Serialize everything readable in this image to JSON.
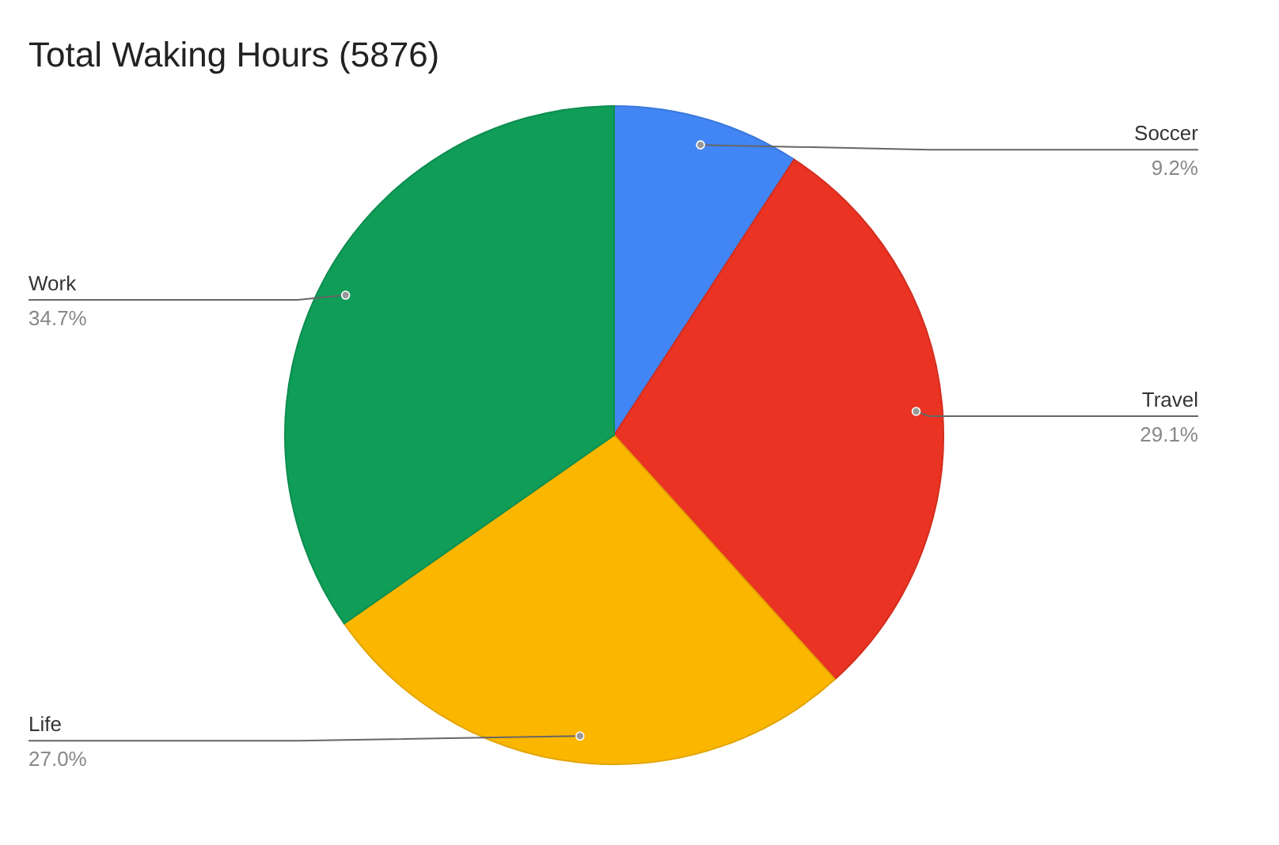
{
  "chart_data": {
    "type": "pie",
    "title": "Total Waking Hours (5876)",
    "categories": [
      "Soccer",
      "Travel",
      "Life",
      "Work"
    ],
    "values": [
      9.2,
      29.1,
      27.0,
      34.7
    ],
    "value_labels": [
      "9.2%",
      "29.1%",
      "27.0%",
      "34.7%"
    ],
    "colors": [
      "#4285f4",
      "#ea3323",
      "#fbb700",
      "#0f9d58"
    ]
  }
}
